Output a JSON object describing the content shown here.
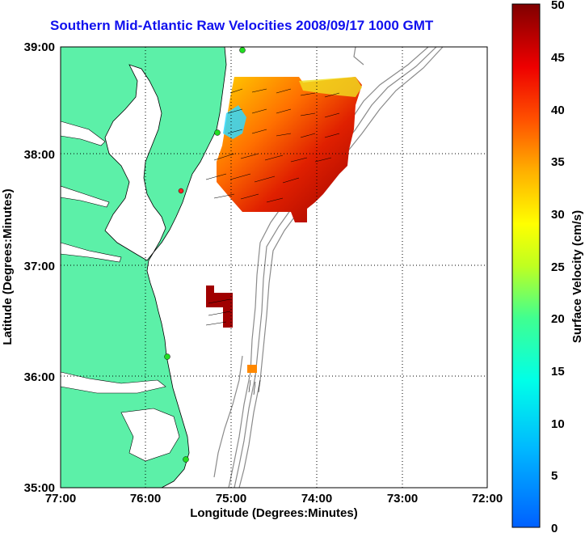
{
  "title": "Southern Mid-Atlantic Raw Velocities 2008/09/17 1000 GMT",
  "xlabel": "Longitude (Degrees:Minutes)",
  "ylabel": "Latitude (Degrees:Minutes)",
  "colorbar_label": "Surface Velocity (cm/s)",
  "x_ticks": [
    "77:00",
    "76:00",
    "75:00",
    "74:00",
    "73:00",
    "72:00"
  ],
  "y_ticks": [
    "39:00",
    "38:00",
    "37:00",
    "36:00",
    "35:00"
  ],
  "colorbar_ticks": [
    "50",
    "45",
    "40",
    "35",
    "30",
    "25",
    "20",
    "15",
    "10",
    "5",
    "0"
  ],
  "colors": {
    "land": "#5cf0a8",
    "ocean": "#ffffff",
    "title": "#1010ee",
    "bathymetry": "#8a8a8a",
    "station_marker": "#22dd22",
    "station_marker_red": "#ff2222"
  },
  "colorbar_range": [
    0,
    50
  ],
  "grid": "dotted"
}
